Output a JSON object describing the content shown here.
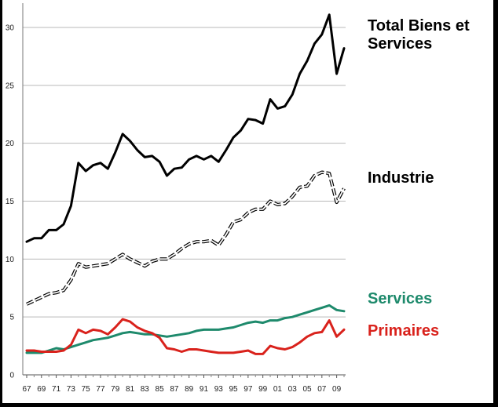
{
  "chart_data": {
    "type": "line",
    "title": "",
    "xlabel": "",
    "ylabel": "",
    "ylim": [
      0,
      32
    ],
    "grid": true,
    "y_ticks": [
      "0",
      "5",
      "10",
      "15",
      "20",
      "25",
      "30"
    ],
    "x_tick_labels": [
      "67",
      "69",
      "71",
      "73",
      "75",
      "77",
      "79",
      "81",
      "83",
      "85",
      "87",
      "89",
      "91",
      "93",
      "95",
      "97",
      "99",
      "01",
      "03",
      "05",
      "07",
      "09"
    ],
    "x": [
      1967,
      1968,
      1969,
      1970,
      1971,
      1972,
      1973,
      1974,
      1975,
      1976,
      1977,
      1978,
      1979,
      1980,
      1981,
      1982,
      1983,
      1984,
      1985,
      1986,
      1987,
      1988,
      1989,
      1990,
      1991,
      1992,
      1993,
      1994,
      1995,
      1996,
      1997,
      1998,
      1999,
      2000,
      2001,
      2002,
      2003,
      2004,
      2005,
      2006,
      2007,
      2008,
      2009,
      2010
    ],
    "series": [
      {
        "name": "Total Biens et Services",
        "color": "#000000",
        "style": "solid",
        "values": [
          11.5,
          11.8,
          11.8,
          12.5,
          12.5,
          13.0,
          14.6,
          18.3,
          17.6,
          18.1,
          18.3,
          17.8,
          19.2,
          20.8,
          20.2,
          19.4,
          18.8,
          18.9,
          18.4,
          17.2,
          17.8,
          17.9,
          18.6,
          18.9,
          18.6,
          18.9,
          18.4,
          19.4,
          20.5,
          21.1,
          22.1,
          22.0,
          21.7,
          23.8,
          23.0,
          23.2,
          24.2,
          26.0,
          27.1,
          28.6,
          29.4,
          31.1,
          26.0,
          28.2
        ]
      },
      {
        "name": "Industrie",
        "color": "#000000",
        "style": "dashed",
        "values": [
          6.1,
          6.4,
          6.7,
          7.0,
          7.1,
          7.3,
          8.2,
          9.6,
          9.3,
          9.4,
          9.5,
          9.6,
          10.0,
          10.4,
          10.0,
          9.7,
          9.4,
          9.8,
          10.0,
          10.0,
          10.4,
          10.9,
          11.3,
          11.5,
          11.5,
          11.6,
          11.2,
          12.1,
          13.2,
          13.4,
          14.0,
          14.3,
          14.3,
          15.0,
          14.7,
          14.8,
          15.4,
          16.2,
          16.3,
          17.2,
          17.5,
          17.4,
          14.9,
          16.1
        ]
      },
      {
        "name": "Services",
        "color": "#1e8a6c",
        "style": "solid",
        "values": [
          1.9,
          1.9,
          1.9,
          2.1,
          2.3,
          2.2,
          2.4,
          2.6,
          2.8,
          3.0,
          3.1,
          3.2,
          3.4,
          3.6,
          3.7,
          3.6,
          3.5,
          3.5,
          3.4,
          3.3,
          3.4,
          3.5,
          3.6,
          3.8,
          3.9,
          3.9,
          3.9,
          4.0,
          4.1,
          4.3,
          4.5,
          4.6,
          4.5,
          4.7,
          4.7,
          4.9,
          5.0,
          5.2,
          5.4,
          5.6,
          5.8,
          6.0,
          5.6,
          5.5
        ]
      },
      {
        "name": "Primaires",
        "color": "#d9221c",
        "style": "solid",
        "values": [
          2.1,
          2.1,
          2.0,
          2.0,
          2.0,
          2.1,
          2.6,
          3.9,
          3.6,
          3.9,
          3.8,
          3.5,
          4.1,
          4.8,
          4.6,
          4.1,
          3.8,
          3.6,
          3.2,
          2.3,
          2.2,
          2.0,
          2.2,
          2.2,
          2.1,
          2.0,
          1.9,
          1.9,
          1.9,
          2.0,
          2.1,
          1.8,
          1.8,
          2.5,
          2.3,
          2.2,
          2.4,
          2.8,
          3.3,
          3.6,
          3.7,
          4.7,
          3.3,
          3.9
        ]
      }
    ]
  }
}
